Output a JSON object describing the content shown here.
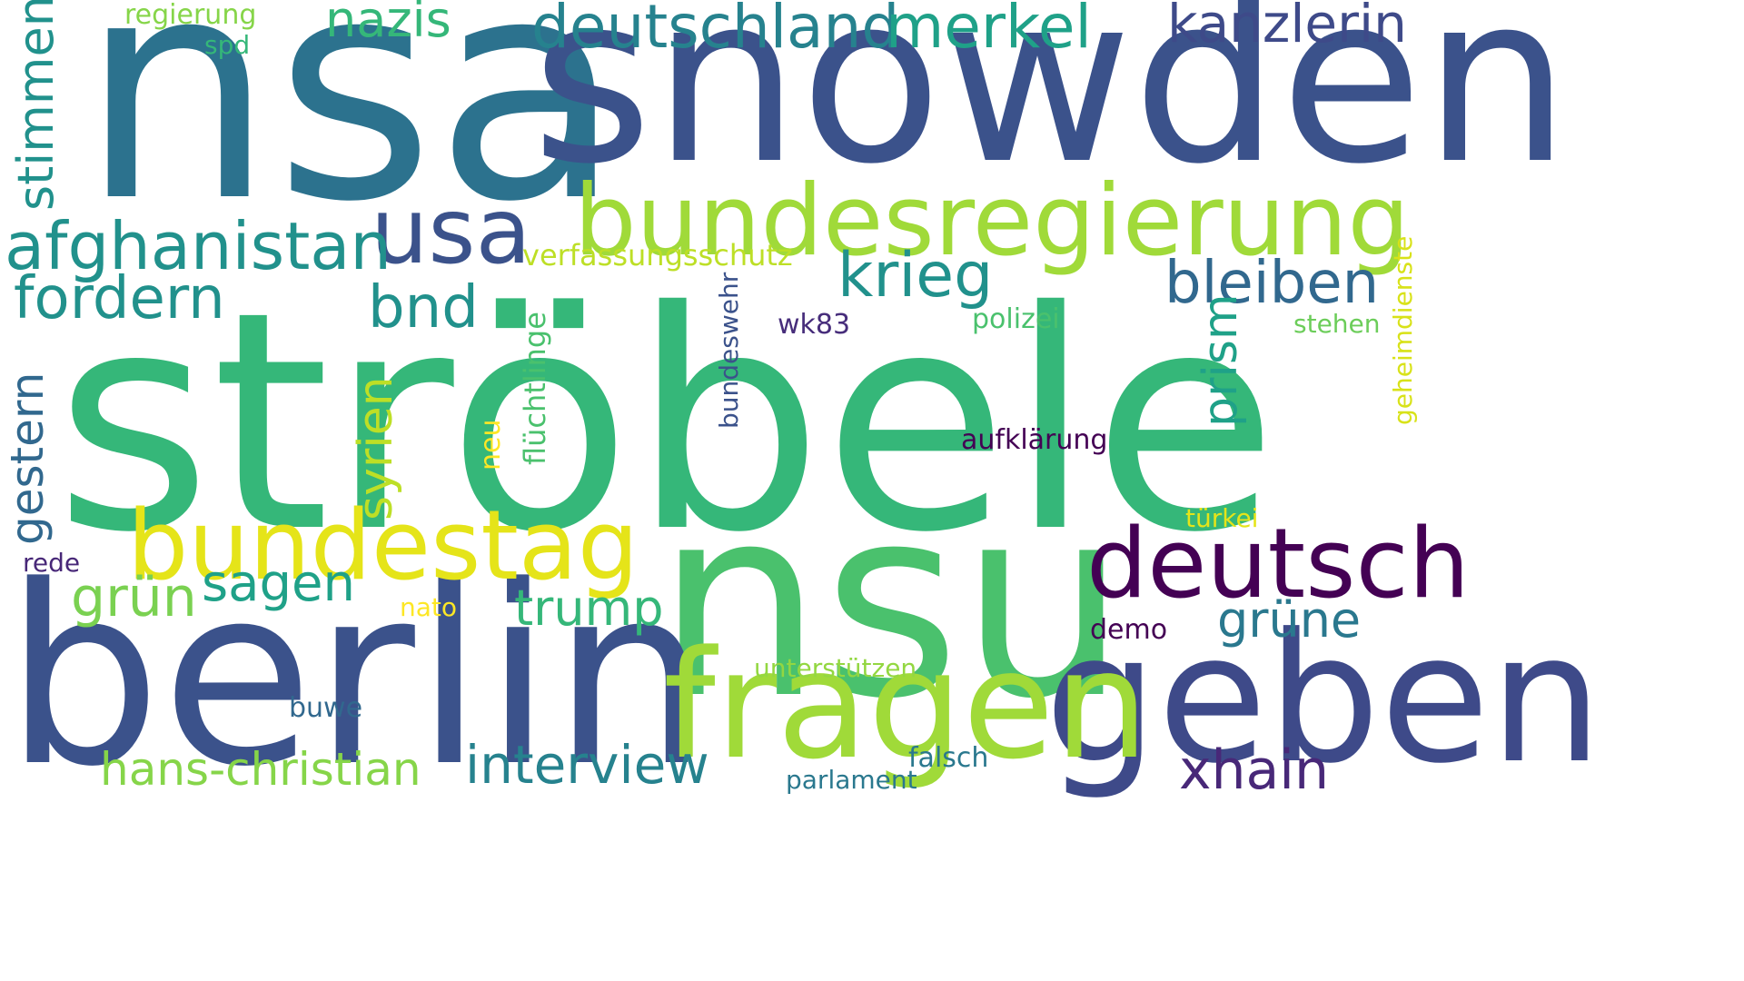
{
  "words": [
    {
      "id": "nsa",
      "text": "nsa",
      "color": "#2c728e"
    },
    {
      "id": "snowden",
      "text": "snowden",
      "color": "#3b528b"
    },
    {
      "id": "stroebele",
      "text": "ströbele",
      "color": "#35b779"
    },
    {
      "id": "nsu",
      "text": "nsu",
      "color": "#4ac16d"
    },
    {
      "id": "berlin",
      "text": "berlin",
      "color": "#3b528b"
    },
    {
      "id": "geben",
      "text": "geben",
      "color": "#3e4a89"
    },
    {
      "id": "fragen",
      "text": "fragen",
      "color": "#a0da39"
    },
    {
      "id": "bundesregierung",
      "text": "bundesregierung",
      "color": "#a0da39"
    },
    {
      "id": "bundestag",
      "text": "bundestag",
      "color": "#e5e419"
    },
    {
      "id": "deutsch",
      "text": "deutsch",
      "color": "#440154"
    },
    {
      "id": "usa",
      "text": "usa",
      "color": "#3b528b"
    },
    {
      "id": "afghanistan",
      "text": "afghanistan",
      "color": "#21918c"
    },
    {
      "id": "deutschland",
      "text": "deutschland",
      "color": "#26828e"
    },
    {
      "id": "merkel",
      "text": "merkel",
      "color": "#1fa188"
    },
    {
      "id": "kanzlerin",
      "text": "kanzlerin",
      "color": "#3e4a89"
    },
    {
      "id": "nazis",
      "text": "nazis",
      "color": "#35b779"
    },
    {
      "id": "stimmen",
      "text": "stimmen",
      "color": "#21918c"
    },
    {
      "id": "krieg",
      "text": "krieg",
      "color": "#21918c"
    },
    {
      "id": "bleiben",
      "text": "bleiben",
      "color": "#31688e"
    },
    {
      "id": "fordern",
      "text": "fordern",
      "color": "#21918c"
    },
    {
      "id": "bnd",
      "text": "bnd",
      "color": "#21918c"
    },
    {
      "id": "prism",
      "text": "prism",
      "color": "#1fa188"
    },
    {
      "id": "syrien",
      "text": "syrien",
      "color": "#bddf26"
    },
    {
      "id": "gestern",
      "text": "gestern",
      "color": "#31688e"
    },
    {
      "id": "sagen",
      "text": "sagen",
      "color": "#1fa188"
    },
    {
      "id": "gruen",
      "text": "grün",
      "color": "#7ad151"
    },
    {
      "id": "trump",
      "text": "trump",
      "color": "#35b779"
    },
    {
      "id": "gruene",
      "text": "grüne",
      "color": "#2a788e"
    },
    {
      "id": "interview",
      "text": "interview",
      "color": "#26828e"
    },
    {
      "id": "hans-christian",
      "text": "hans-christian",
      "color": "#86d549"
    },
    {
      "id": "xhain",
      "text": "xhain",
      "color": "#482878"
    },
    {
      "id": "verfassungsschutz",
      "text": "verfassungsschutz",
      "color": "#bddf26"
    },
    {
      "id": "regierung",
      "text": "regierung",
      "color": "#86d549"
    },
    {
      "id": "spd",
      "text": "spd",
      "color": "#35b779"
    },
    {
      "id": "fluechtlinge",
      "text": "flüchtlinge",
      "color": "#4ac16d"
    },
    {
      "id": "bundeswehr",
      "text": "bundeswehr",
      "color": "#3b528b"
    },
    {
      "id": "wk83",
      "text": "wk83",
      "color": "#472d7b"
    },
    {
      "id": "polizei",
      "text": "polizei",
      "color": "#4ac16d"
    },
    {
      "id": "stehen",
      "text": "stehen",
      "color": "#6ccd5a"
    },
    {
      "id": "geheimdienste",
      "text": "geheimdienste",
      "color": "#d8e219"
    },
    {
      "id": "aufklaerung",
      "text": "aufklärung",
      "color": "#440154"
    },
    {
      "id": "neu",
      "text": "neu",
      "color": "#fde725"
    },
    {
      "id": "tuerkei",
      "text": "türkei",
      "color": "#e5e419"
    },
    {
      "id": "rede",
      "text": "rede",
      "color": "#482878"
    },
    {
      "id": "nato",
      "text": "nato",
      "color": "#fde725"
    },
    {
      "id": "demo",
      "text": "demo",
      "color": "#440154"
    },
    {
      "id": "unterstuetzen",
      "text": "unterstützen",
      "color": "#93d741"
    },
    {
      "id": "buwe",
      "text": "buwe",
      "color": "#31688e"
    },
    {
      "id": "falsch",
      "text": "falsch",
      "color": "#2a788e"
    },
    {
      "id": "parlament",
      "text": "parlament",
      "color": "#2a788e"
    }
  ]
}
